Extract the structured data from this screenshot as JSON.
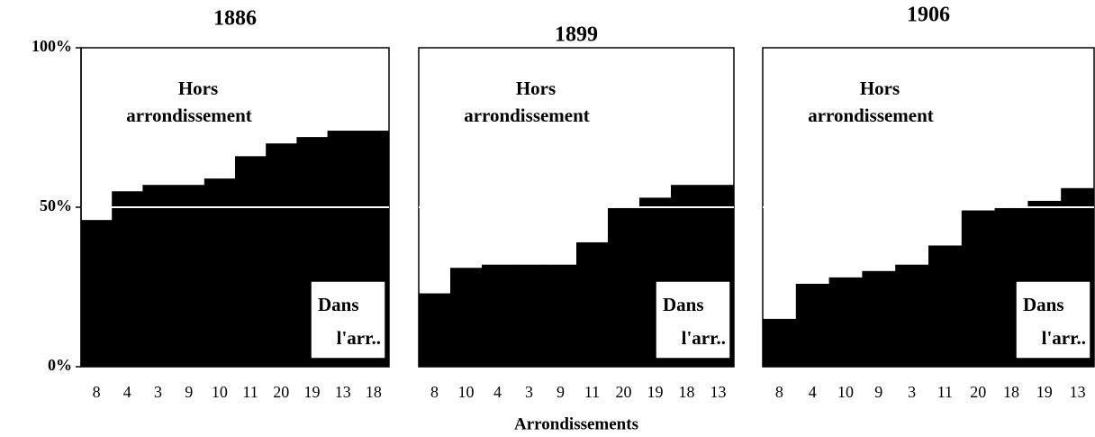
{
  "chart_data": [
    {
      "type": "bar",
      "title": "1886",
      "categories": [
        "8",
        "4",
        "3",
        "9",
        "10",
        "11",
        "20",
        "19",
        "13",
        "18"
      ],
      "values": [
        46,
        55,
        57,
        57,
        59,
        66,
        70,
        72,
        74,
        74
      ],
      "color": "#000000",
      "ylim": [
        0,
        100
      ],
      "yticks": [
        {
          "value": 0,
          "label": "0%"
        },
        {
          "value": 50,
          "label": "50%"
        },
        {
          "value": 100,
          "label": "100%"
        }
      ],
      "hline": 50,
      "annotations": [
        [
          "Hors",
          "arrondissement"
        ],
        [
          "Dans",
          "l'arr.."
        ]
      ]
    },
    {
      "type": "bar",
      "title": "1899",
      "categories": [
        "8",
        "10",
        "4",
        "3",
        "9",
        "11",
        "20",
        "19",
        "18",
        "13"
      ],
      "values": [
        23,
        31,
        32,
        32,
        32,
        39,
        50,
        53,
        57,
        57
      ],
      "color": "#000000",
      "ylim": [
        0,
        100
      ],
      "hline": 50,
      "xlabel": "Arrondissements",
      "annotations": [
        [
          "Hors",
          "arrondissement"
        ],
        [
          "Dans",
          "l'arr.."
        ]
      ]
    },
    {
      "type": "bar",
      "title": "1906",
      "categories": [
        "8",
        "4",
        "10",
        "9",
        "3",
        "11",
        "20",
        "18",
        "19",
        "13"
      ],
      "values": [
        15,
        26,
        28,
        30,
        32,
        38,
        49,
        50,
        52,
        56
      ],
      "color": "#000000",
      "ylim": [
        0,
        100
      ],
      "hline": 50,
      "annotations": [
        [
          "Hors",
          "arrondissement"
        ],
        [
          "Dans",
          "l'arr.."
        ]
      ]
    }
  ]
}
